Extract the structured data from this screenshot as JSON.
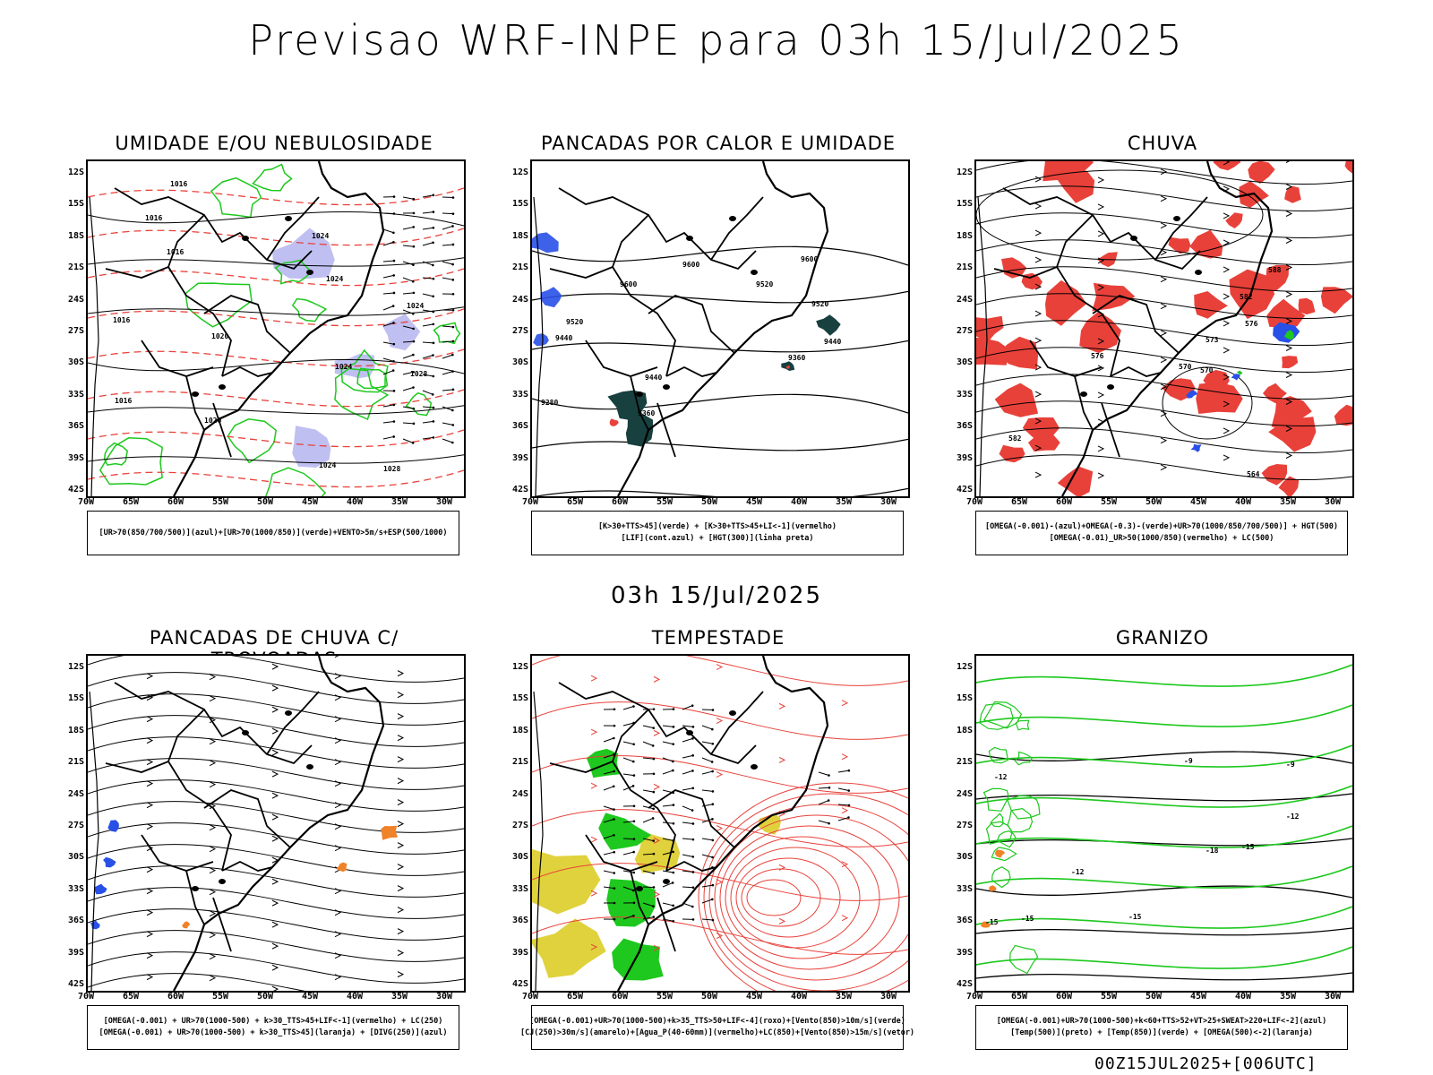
{
  "header": {
    "title": "Previsao WRF-INPE  para 03h 15/Jul/2025"
  },
  "mid_title": "03h 15/Jul/2025",
  "footer": "00Z15JUL2025+[006UTC]",
  "axes": {
    "lat_labels": [
      "12S",
      "15S",
      "18S",
      "21S",
      "24S",
      "27S",
      "30S",
      "33S",
      "36S",
      "39S",
      "42S"
    ],
    "lon_labels": [
      "70W",
      "65W",
      "60W",
      "55W",
      "50W",
      "45W",
      "40W",
      "35W",
      "30W"
    ]
  },
  "colors": {
    "red": "#e8413a",
    "green": "#1ec81e",
    "blue": "#2850e6",
    "dark": "#17403f",
    "lavender": "#b4b4ee",
    "yellow": "#e0d23c",
    "orange": "#f08228"
  },
  "panels": [
    {
      "title": "UMIDADE E/OU NEBULOSIDADE",
      "legend": [
        "[UR>70(850/700/500)](azul)+[UR>70(1000/850)](verde)+VENTO>5m/s+ESP(500/1000)"
      ],
      "contour_labels": [
        "1016",
        "1016",
        "1016",
        "1024",
        "1024",
        "1020",
        "1024",
        "1024",
        "1028",
        "1016",
        "1016",
        "1020",
        "1024",
        "1028"
      ]
    },
    {
      "title": "PANCADAS POR CALOR E UMIDADE",
      "legend": [
        "[K>30+TTS>45](verde) + [K>30+TTS>45+LI<-1](vermelho)",
        "[LIF](cont.azul) + [HGT(300)](linha preta)"
      ],
      "contour_labels": [
        "9600",
        "9600",
        "9600",
        "9520",
        "9520",
        "9440",
        "9440",
        "9360",
        "9360",
        "9280",
        "9520",
        "9440"
      ]
    },
    {
      "title": "CHUVA",
      "legend": [
        "[OMEGA(-0.001)-(azul)+OMEGA(-0.3)-(verde)+UR>70(1000/850/700/500)] + HGT(500)",
        "[OMEGA(-0.01)_UR>50(1000/850)(vermelho) + LC(500)"
      ],
      "contour_labels": [
        "588",
        "582",
        "576",
        "573",
        "570",
        "570",
        "576",
        "582",
        "564"
      ]
    },
    {
      "title": "PANCADAS DE CHUVA C/ TROVOADAS",
      "legend": [
        "[OMEGA(-0.001) + UR>70(1000-500) + k>30_TTS>45+LIF<-1](vermelho) + LC(250)",
        "[OMEGA(-0.001) + UR>70(1000-500) + k>30_TTS>45](laranja) + [DIVG(250)](azul)"
      ]
    },
    {
      "title": "TEMPESTADE",
      "legend": [
        "[OMEGA(-0.001)+UR>70(1000-500)+k>35_TTS>50+LIF<-4](roxo)+[Vento(850)>10m/s](verde)",
        "[CJ(250)>30m/s](amarelo)+[Agua_P(40-60mm)](vermelho)+LC(850)+[Vento(850)>15m/s](vetor)"
      ]
    },
    {
      "title": "GRANIZO",
      "legend": [
        "[OMEGA(-0.001)+UR>70(1000-500)+k<60+TTS>52+VT>25+SWEAT>220+LIF<-2](azul)",
        "[Temp(500)](preto) + [Temp(850)](verde) + [OMEGA(500)<-2](laranja)"
      ],
      "contour_labels": [
        "-9",
        "-9",
        "-12",
        "-12",
        "-15",
        "-15",
        "-18",
        "-15",
        "-12",
        "-15"
      ]
    }
  ]
}
